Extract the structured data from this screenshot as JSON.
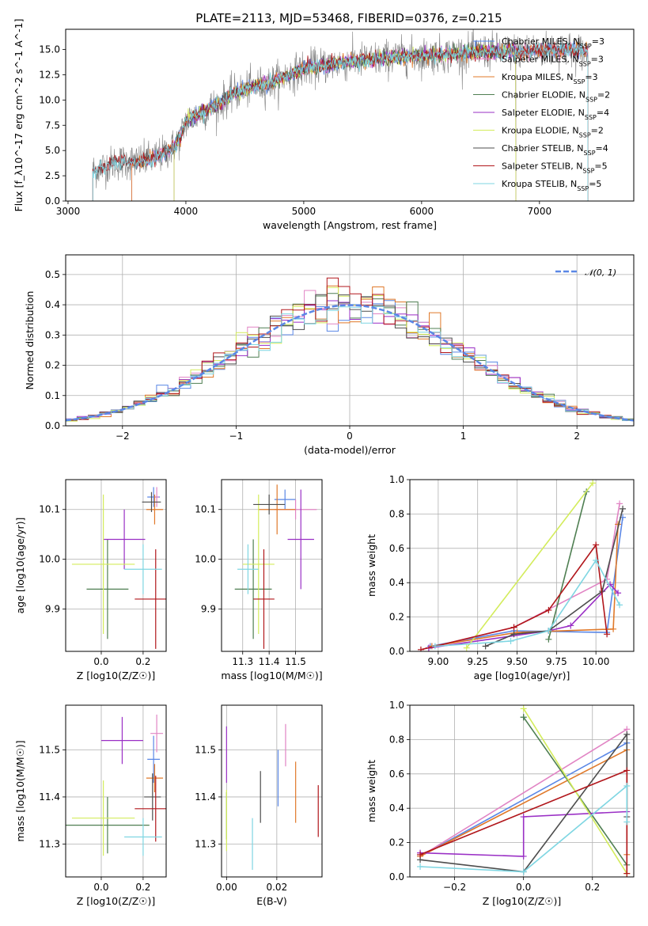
{
  "title": "PLATE=2113, MJD=53468, FIBERID=0376, z=0.215",
  "colors": {
    "Chabrier MILES": "#5a87e6",
    "Salpeter MILES": "#e184c4",
    "Kroupa MILES": "#e0792a",
    "Chabrier ELODIE": "#4f7f52",
    "Salpeter ELODIE": "#9a2fc5",
    "Kroupa ELODIE": "#d3ec5b",
    "Chabrier STELIB": "#4d4d4d",
    "Salpeter STELIB": "#b1161b",
    "Kroupa STELIB": "#7fd6e2"
  },
  "chart_data": [
    {
      "id": "spectrum",
      "type": "line",
      "xlabel": "wavelength [Angstrom, rest frame]",
      "ylabel": "Flux [f_λ10^-17 erg cm^-2 s^-1 A^-1]",
      "xlim": [
        2980,
        7800
      ],
      "ylim": [
        0,
        17
      ],
      "xticks": [
        3000,
        4000,
        5000,
        6000,
        7000
      ],
      "yticks": [
        0.0,
        2.5,
        5.0,
        7.5,
        10.0,
        12.5,
        15.0
      ],
      "grid": false,
      "legend_position": "lower-right",
      "legend": [
        {
          "label": "Chabrier MILES",
          "nssp": "3"
        },
        {
          "label": "Salpeter MILES",
          "nssp": "3"
        },
        {
          "label": "Kroupa MILES",
          "nssp": "3"
        },
        {
          "label": "Chabrier ELODIE",
          "nssp": "2"
        },
        {
          "label": "Salpeter ELODIE",
          "nssp": "4"
        },
        {
          "label": "Kroupa ELODIE",
          "nssp": "2"
        },
        {
          "label": "Chabrier STELIB",
          "nssp": "4"
        },
        {
          "label": "Salpeter STELIB",
          "nssp": "5"
        },
        {
          "label": "Kroupa STELIB",
          "nssp": "5"
        }
      ],
      "data_color": "#808080",
      "continuum_x": [
        3210,
        3300,
        3400,
        3500,
        3600,
        3700,
        3800,
        3900,
        3950,
        4000,
        4100,
        4200,
        4300,
        4400,
        4500,
        4600,
        4700,
        4800,
        4900,
        5000,
        5200,
        5400,
        5600,
        5800,
        6000,
        6200,
        6400,
        6600,
        6800,
        7000,
        7200,
        7400
      ],
      "continuum_y": [
        3.0,
        3.4,
        3.8,
        3.9,
        3.9,
        4.1,
        4.6,
        5.4,
        6.2,
        7.9,
        8.5,
        9.2,
        9.8,
        10.6,
        11.0,
        11.4,
        11.6,
        12.1,
        12.6,
        13.1,
        13.5,
        13.8,
        14.0,
        14.3,
        14.4,
        14.5,
        14.7,
        14.8,
        14.8,
        14.9,
        15.0,
        14.8
      ],
      "model_ranges": {
        "Chabrier MILES": [
          3540,
          7410
        ],
        "Salpeter MILES": [
          3540,
          7410
        ],
        "Kroupa MILES": [
          3540,
          7410
        ],
        "Chabrier ELODIE": [
          3900,
          6800
        ],
        "Salpeter ELODIE": [
          3900,
          6800
        ],
        "Kroupa ELODIE": [
          3900,
          6800
        ],
        "Chabrier STELIB": [
          3210,
          7410
        ],
        "Salpeter STELIB": [
          3210,
          7410
        ],
        "Kroupa STELIB": [
          3210,
          7410
        ]
      }
    },
    {
      "id": "residuals",
      "type": "histogram",
      "xlabel": "(data-model)/error",
      "ylabel": "Normed distribution",
      "xlim": [
        -2.5,
        2.5
      ],
      "ylim": [
        0,
        0.565
      ],
      "xticks": [
        -2,
        -1,
        0,
        1,
        2
      ],
      "yticks": [
        0.0,
        0.1,
        0.2,
        0.3,
        0.4,
        0.5
      ],
      "grid": true,
      "legend_position": "upper-right",
      "legend": [
        {
          "label": "𝒩(0, 1)",
          "color": "#5a87e6",
          "style": "dashed"
        }
      ],
      "bin_width": 0.1,
      "bin_start": -2.5
    },
    {
      "id": "age_vs_Z",
      "type": "errorbar",
      "xlabel": "Z [log10(Z/Z☉)]",
      "ylabel": "age [log10(age/yr)]",
      "xlim": [
        -0.17,
        0.31
      ],
      "ylim": [
        9.815,
        10.16
      ],
      "xticks": [
        0.0,
        0.2
      ],
      "yticks": [
        9.9,
        10.0,
        10.1
      ],
      "grid": true,
      "points": [
        {
          "model": "Chabrier MILES",
          "x": 0.25,
          "xerr": 0.03,
          "y": 10.125,
          "yerr": 0.02
        },
        {
          "model": "Salpeter MILES",
          "x": 0.265,
          "xerr": 0.01,
          "y": 10.125,
          "yerr": 0.02
        },
        {
          "model": "Kroupa MILES",
          "x": 0.255,
          "xerr": 0.04,
          "y": 10.1,
          "yerr": 0.03
        },
        {
          "model": "Chabrier ELODIE",
          "x": 0.03,
          "xerr": 0.1,
          "y": 9.94,
          "yerr": 0.1
        },
        {
          "model": "Salpeter ELODIE",
          "x": 0.11,
          "xerr": 0.1,
          "y": 10.04,
          "yerr": 0.06
        },
        {
          "model": "Kroupa ELODIE",
          "x": 0.01,
          "xerr": 0.15,
          "y": 9.99,
          "yerr": 0.14
        },
        {
          "model": "Chabrier STELIB",
          "x": 0.24,
          "xerr": 0.045,
          "y": 10.115,
          "yerr": 0.02
        },
        {
          "model": "Salpeter STELIB",
          "x": 0.26,
          "xerr": 0.1,
          "y": 9.92,
          "yerr": 0.1
        },
        {
          "model": "Kroupa STELIB",
          "x": 0.2,
          "xerr": 0.09,
          "y": 9.98,
          "yerr": 0.05
        }
      ]
    },
    {
      "id": "age_vs_mass",
      "type": "errorbar",
      "xlabel": "mass [log10(M/M☉)]",
      "ylabel": "",
      "xlim": [
        11.22,
        11.6
      ],
      "ylim": [
        9.815,
        10.16
      ],
      "xticks": [
        11.3,
        11.4,
        11.5
      ],
      "yticks": [
        9.9,
        10.0,
        10.1
      ],
      "grid": true,
      "points": [
        {
          "model": "Chabrier MILES",
          "x": 11.46,
          "xerr": 0.04,
          "y": 10.12,
          "yerr": 0.02
        },
        {
          "model": "Salpeter MILES",
          "x": 11.5,
          "xerr": 0.08,
          "y": 10.1,
          "yerr": 0.02
        },
        {
          "model": "Kroupa MILES",
          "x": 11.43,
          "xerr": 0.07,
          "y": 10.1,
          "yerr": 0.05
        },
        {
          "model": "Chabrier ELODIE",
          "x": 11.34,
          "xerr": 0.07,
          "y": 9.94,
          "yerr": 0.1
        },
        {
          "model": "Salpeter ELODIE",
          "x": 11.52,
          "xerr": 0.05,
          "y": 10.04,
          "yerr": 0.1
        },
        {
          "model": "Kroupa ELODIE",
          "x": 11.36,
          "xerr": 0.06,
          "y": 9.99,
          "yerr": 0.14
        },
        {
          "model": "Chabrier STELIB",
          "x": 11.4,
          "xerr": 0.06,
          "y": 10.11,
          "yerr": 0.02
        },
        {
          "model": "Salpeter STELIB",
          "x": 11.38,
          "xerr": 0.04,
          "y": 9.92,
          "yerr": 0.1
        },
        {
          "model": "Kroupa STELIB",
          "x": 11.32,
          "xerr": 0.04,
          "y": 9.98,
          "yerr": 0.05
        }
      ]
    },
    {
      "id": "weight_vs_age",
      "type": "line",
      "xlabel": "age [log10(age/yr)]",
      "ylabel": "mass weight",
      "xlim": [
        8.82,
        10.24
      ],
      "ylim": [
        0,
        1
      ],
      "xticks": [
        9.0,
        9.25,
        9.5,
        9.75,
        10.0
      ],
      "yticks": [
        0.0,
        0.2,
        0.4,
        0.6,
        0.8,
        1.0
      ],
      "grid": true,
      "series": [
        {
          "model": "Chabrier MILES",
          "x": [
            8.95,
            9.48,
            10.07,
            10.17
          ],
          "y": [
            0.03,
            0.12,
            0.11,
            0.78
          ]
        },
        {
          "model": "Salpeter MILES",
          "x": [
            8.94,
            9.48,
            10.07,
            10.15
          ],
          "y": [
            0.02,
            0.14,
            0.42,
            0.86
          ]
        },
        {
          "model": "Kroupa MILES",
          "x": [
            8.96,
            9.5,
            10.11,
            10.14
          ],
          "y": [
            0.03,
            0.11,
            0.13,
            0.74
          ]
        },
        {
          "model": "Chabrier ELODIE",
          "x": [
            9.7,
            9.94
          ],
          "y": [
            0.07,
            0.93
          ]
        },
        {
          "model": "Salpeter ELODIE",
          "x": [
            8.94,
            9.7,
            9.84,
            10.09,
            10.14
          ],
          "y": [
            0.02,
            0.12,
            0.15,
            0.39,
            0.34
          ]
        },
        {
          "model": "Kroupa ELODIE",
          "x": [
            9.18,
            9.98
          ],
          "y": [
            0.02,
            0.98
          ]
        },
        {
          "model": "Chabrier STELIB",
          "x": [
            9.3,
            9.48,
            9.7,
            10.04,
            10.17
          ],
          "y": [
            0.03,
            0.1,
            0.12,
            0.35,
            0.83
          ]
        },
        {
          "model": "Salpeter STELIB",
          "x": [
            8.89,
            9.48,
            9.7,
            10.0,
            10.07
          ],
          "y": [
            0.01,
            0.14,
            0.24,
            0.62,
            0.1
          ]
        },
        {
          "model": "Kroupa STELIB",
          "x": [
            8.98,
            9.46,
            9.7,
            10.0,
            10.15
          ],
          "y": [
            0.03,
            0.06,
            0.12,
            0.53,
            0.27
          ]
        }
      ]
    },
    {
      "id": "mass_vs_Z",
      "type": "errorbar",
      "xlabel": "Z [log10(Z/Z☉)]",
      "ylabel": "mass [log10(M/M☉)]",
      "xlim": [
        -0.17,
        0.31
      ],
      "ylim": [
        11.23,
        11.595
      ],
      "xticks": [
        0.0,
        0.2
      ],
      "yticks": [
        11.3,
        11.4,
        11.5
      ],
      "grid": true,
      "points": [
        {
          "model": "Chabrier MILES",
          "x": 0.25,
          "xerr": 0.03,
          "y": 11.48,
          "yerr": 0.05
        },
        {
          "model": "Salpeter MILES",
          "x": 0.265,
          "xerr": 0.03,
          "y": 11.535,
          "yerr": 0.04
        },
        {
          "model": "Kroupa MILES",
          "x": 0.255,
          "xerr": 0.04,
          "y": 11.44,
          "yerr": 0.03
        },
        {
          "model": "Chabrier ELODIE",
          "x": 0.03,
          "xerr": 0.2,
          "y": 11.34,
          "yerr": 0.06
        },
        {
          "model": "Salpeter ELODIE",
          "x": 0.1,
          "xerr": 0.1,
          "y": 11.52,
          "yerr": 0.05
        },
        {
          "model": "Kroupa ELODIE",
          "x": 0.01,
          "xerr": 0.15,
          "y": 11.355,
          "yerr": 0.08
        },
        {
          "model": "Chabrier STELIB",
          "x": 0.245,
          "xerr": 0.04,
          "y": 11.4,
          "yerr": 0.05
        },
        {
          "model": "Salpeter STELIB",
          "x": 0.26,
          "xerr": 0.1,
          "y": 11.375,
          "yerr": 0.07
        },
        {
          "model": "Kroupa STELIB",
          "x": 0.2,
          "xerr": 0.09,
          "y": 11.315,
          "yerr": 0.04
        }
      ]
    },
    {
      "id": "mass_vs_EBV",
      "type": "errorbar",
      "xlabel": "E(B-V)",
      "ylabel": "",
      "xlim": [
        -0.002,
        0.038
      ],
      "ylim": [
        11.23,
        11.595
      ],
      "xticks": [
        0.0,
        0.02
      ],
      "yticks": [
        11.3,
        11.4,
        11.5
      ],
      "grid": true,
      "points": [
        {
          "model": "Chabrier MILES",
          "x": 0.0205,
          "xerr": 0,
          "y": 11.44,
          "yerr": 0.06
        },
        {
          "model": "Salpeter MILES",
          "x": 0.0235,
          "xerr": 0,
          "y": 11.51,
          "yerr": 0.045
        },
        {
          "model": "Kroupa MILES",
          "x": 0.0275,
          "xerr": 0,
          "y": 11.41,
          "yerr": 0.065
        },
        {
          "model": "Chabrier ELODIE",
          "x": 0.0,
          "xerr": 0,
          "y": 11.36,
          "yerr": 0.05
        },
        {
          "model": "Salpeter ELODIE",
          "x": 0.0,
          "xerr": 0,
          "y": 11.49,
          "yerr": 0.06
        },
        {
          "model": "Kroupa ELODIE",
          "x": 0.0,
          "xerr": 0,
          "y": 11.35,
          "yerr": 0.065
        },
        {
          "model": "Chabrier STELIB",
          "x": 0.0135,
          "xerr": 0,
          "y": 11.4,
          "yerr": 0.055
        },
        {
          "model": "Salpeter STELIB",
          "x": 0.0365,
          "xerr": 0,
          "y": 11.37,
          "yerr": 0.055
        },
        {
          "model": "Kroupa STELIB",
          "x": 0.0103,
          "xerr": 0,
          "y": 11.3,
          "yerr": 0.055
        }
      ]
    },
    {
      "id": "weight_vs_Z",
      "type": "line",
      "xlabel": "Z [log10(Z/Z☉)]",
      "ylabel": "mass weight",
      "xlim": [
        -0.33,
        0.32
      ],
      "ylim": [
        0,
        1
      ],
      "xticks": [
        -0.2,
        0.0,
        0.2
      ],
      "yticks": [
        0.0,
        0.2,
        0.4,
        0.6,
        0.8,
        1.0
      ],
      "grid": true,
      "series": [
        {
          "model": "Chabrier MILES",
          "x": [
            -0.3,
            0.3
          ],
          "y": [
            0.12,
            0.78
          ]
        },
        {
          "model": "Salpeter MILES",
          "x": [
            -0.3,
            0.3
          ],
          "y": [
            0.12,
            0.86
          ]
        },
        {
          "model": "Kroupa MILES",
          "x": [
            -0.3,
            0.3,
            0.3
          ],
          "y": [
            0.12,
            0.74,
            0.13
          ]
        },
        {
          "model": "Chabrier ELODIE",
          "x": [
            0.0,
            0.0,
            0.3
          ],
          "y": [
            0.93,
            0.93,
            0.07
          ]
        },
        {
          "model": "Salpeter ELODIE",
          "x": [
            -0.3,
            0.0,
            0.0,
            0.3
          ],
          "y": [
            0.14,
            0.12,
            0.35,
            0.38
          ]
        },
        {
          "model": "Kroupa ELODIE",
          "x": [
            0.0,
            0.3
          ],
          "y": [
            0.98,
            0.02
          ]
        },
        {
          "model": "Chabrier STELIB",
          "x": [
            -0.3,
            0.0,
            0.3,
            0.3
          ],
          "y": [
            0.1,
            0.03,
            0.83,
            0.35
          ]
        },
        {
          "model": "Salpeter STELIB",
          "x": [
            -0.3,
            0.3,
            0.3
          ],
          "y": [
            0.13,
            0.62,
            0.02
          ]
        },
        {
          "model": "Kroupa STELIB",
          "x": [
            -0.3,
            0.0,
            0.3,
            0.3
          ],
          "y": [
            0.06,
            0.03,
            0.53,
            0.32
          ]
        }
      ]
    }
  ]
}
